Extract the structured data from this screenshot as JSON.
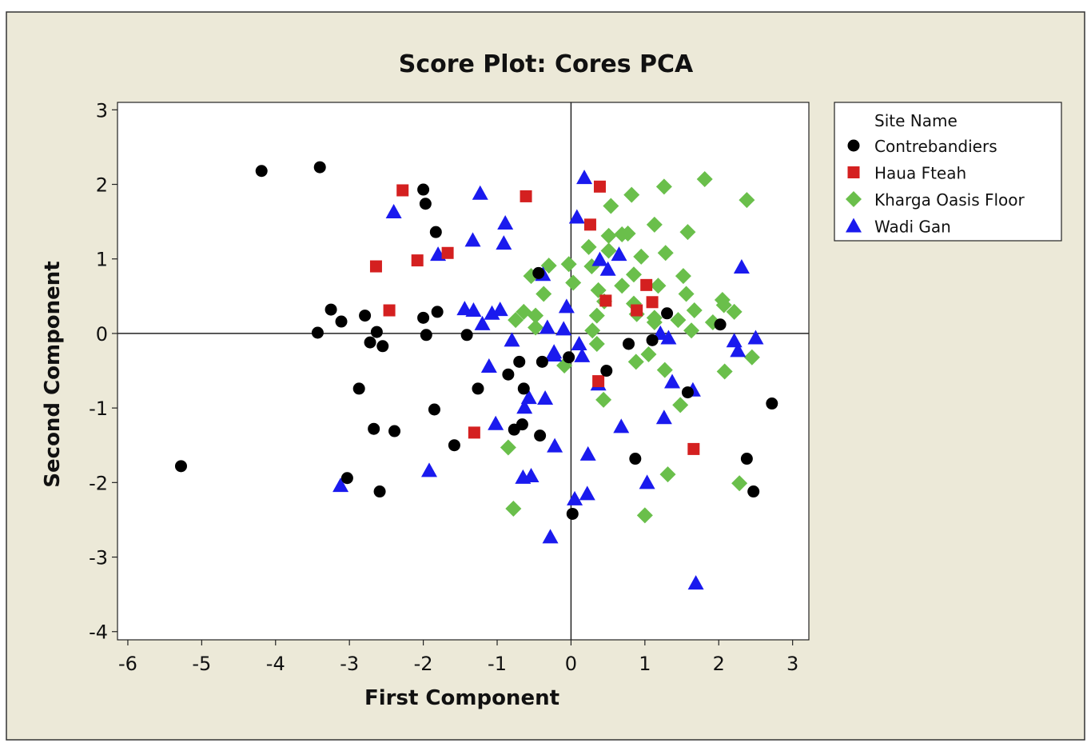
{
  "chart_data": {
    "type": "scatter",
    "title": "Score Plot: Cores PCA",
    "xlabel": "First Component",
    "ylabel": "Second Component",
    "xlim": [
      -6.14,
      3.22
    ],
    "ylim": [
      -4.11,
      3.1
    ],
    "xticks": [
      -6,
      -5,
      -4,
      -3,
      -2,
      -1,
      0,
      1,
      2,
      3
    ],
    "yticks": [
      3,
      2,
      1,
      0,
      -1,
      -2,
      -3,
      -4
    ],
    "reference_lines": {
      "x": 0,
      "y": 0
    },
    "grid": false,
    "legend": {
      "title": "Site Name",
      "position": "right"
    },
    "series": [
      {
        "name": "Contrebandiers",
        "marker": "circle",
        "color": "#000000",
        "points": [
          [
            -4.19,
            2.18
          ],
          [
            -3.4,
            2.23
          ],
          [
            -2.0,
            1.93
          ],
          [
            -1.97,
            1.74
          ],
          [
            -1.83,
            1.36
          ],
          [
            -3.25,
            0.32
          ],
          [
            -3.11,
            0.16
          ],
          [
            -2.79,
            0.24
          ],
          [
            -3.43,
            0.01
          ],
          [
            -2.63,
            0.02
          ],
          [
            -2.72,
            -0.12
          ],
          [
            -2.55,
            -0.17
          ],
          [
            -2.0,
            0.21
          ],
          [
            -1.81,
            0.29
          ],
          [
            -1.96,
            -0.02
          ],
          [
            -1.41,
            -0.02
          ],
          [
            -2.87,
            -0.74
          ],
          [
            -2.67,
            -1.28
          ],
          [
            -2.39,
            -1.31
          ],
          [
            -1.85,
            -1.02
          ],
          [
            -1.26,
            -0.74
          ],
          [
            -1.58,
            -1.5
          ],
          [
            -3.03,
            -1.94
          ],
          [
            -2.59,
            -2.12
          ],
          [
            -5.28,
            -1.78
          ],
          [
            -0.85,
            -0.55
          ],
          [
            -0.7,
            -0.38
          ],
          [
            -0.64,
            -0.74
          ],
          [
            -0.77,
            -1.29
          ],
          [
            -0.66,
            -1.22
          ],
          [
            -0.42,
            -1.37
          ],
          [
            -0.39,
            -0.38
          ],
          [
            -0.03,
            -0.32
          ],
          [
            0.48,
            -0.5
          ],
          [
            0.78,
            -0.14
          ],
          [
            1.1,
            -0.09
          ],
          [
            1.3,
            0.27
          ],
          [
            1.58,
            -0.79
          ],
          [
            2.02,
            0.12
          ],
          [
            2.72,
            -0.94
          ],
          [
            2.38,
            -1.68
          ],
          [
            2.47,
            -2.12
          ],
          [
            0.87,
            -1.68
          ],
          [
            0.02,
            -2.42
          ],
          [
            -0.44,
            0.81
          ]
        ]
      },
      {
        "name": "Haua Fteah",
        "marker": "square",
        "color": "#d42020",
        "points": [
          [
            -2.28,
            1.92
          ],
          [
            -0.61,
            1.84
          ],
          [
            0.39,
            1.97
          ],
          [
            0.26,
            1.46
          ],
          [
            -2.64,
            0.9
          ],
          [
            -2.08,
            0.98
          ],
          [
            -1.67,
            1.08
          ],
          [
            -2.46,
            0.31
          ],
          [
            1.02,
            0.65
          ],
          [
            1.1,
            0.42
          ],
          [
            0.47,
            0.44
          ],
          [
            0.89,
            0.31
          ],
          [
            0.37,
            -0.64
          ],
          [
            -1.31,
            -1.33
          ],
          [
            1.66,
            -1.55
          ]
        ]
      },
      {
        "name": "Kharga Oasis Floor",
        "marker": "diamond",
        "color": "#6abf4b",
        "points": [
          [
            1.81,
            2.07
          ],
          [
            2.38,
            1.79
          ],
          [
            1.26,
            1.97
          ],
          [
            0.82,
            1.86
          ],
          [
            0.54,
            1.71
          ],
          [
            1.13,
            1.46
          ],
          [
            1.58,
            1.36
          ],
          [
            0.51,
            1.31
          ],
          [
            0.69,
            1.33
          ],
          [
            0.77,
            1.34
          ],
          [
            0.24,
            1.16
          ],
          [
            0.51,
            1.11
          ],
          [
            0.95,
            1.03
          ],
          [
            1.28,
            1.08
          ],
          [
            -0.3,
            0.91
          ],
          [
            -0.03,
            0.93
          ],
          [
            0.28,
            0.9
          ],
          [
            -0.54,
            0.77
          ],
          [
            0.03,
            0.68
          ],
          [
            0.69,
            0.64
          ],
          [
            0.85,
            0.79
          ],
          [
            1.18,
            0.64
          ],
          [
            1.52,
            0.77
          ],
          [
            -0.37,
            0.53
          ],
          [
            0.37,
            0.58
          ],
          [
            1.56,
            0.53
          ],
          [
            0.45,
            0.43
          ],
          [
            0.85,
            0.4
          ],
          [
            2.05,
            0.45
          ],
          [
            2.07,
            0.38
          ],
          [
            0.35,
            0.24
          ],
          [
            0.89,
            0.26
          ],
          [
            1.13,
            0.21
          ],
          [
            1.67,
            0.31
          ],
          [
            2.21,
            0.29
          ],
          [
            -0.64,
            0.29
          ],
          [
            -0.75,
            0.18
          ],
          [
            -0.48,
            0.24
          ],
          [
            -0.48,
            0.08
          ],
          [
            1.92,
            0.15
          ],
          [
            1.63,
            0.04
          ],
          [
            1.45,
            0.18
          ],
          [
            0.29,
            0.04
          ],
          [
            0.35,
            -0.14
          ],
          [
            1.13,
            0.15
          ],
          [
            2.45,
            -0.32
          ],
          [
            1.05,
            -0.28
          ],
          [
            0.88,
            -0.38
          ],
          [
            1.27,
            -0.49
          ],
          [
            2.08,
            -0.51
          ],
          [
            -0.09,
            -0.43
          ],
          [
            0.44,
            -0.89
          ],
          [
            1.48,
            -0.96
          ],
          [
            -0.85,
            -1.53
          ],
          [
            -0.78,
            -2.35
          ],
          [
            1.0,
            -2.44
          ],
          [
            1.31,
            -1.89
          ],
          [
            2.28,
            -2.01
          ]
        ]
      },
      {
        "name": "Wadi Gan",
        "marker": "triangle",
        "color": "#1a1aee",
        "points": [
          [
            0.18,
            2.09
          ],
          [
            -1.23,
            1.88
          ],
          [
            -2.4,
            1.63
          ],
          [
            -0.89,
            1.48
          ],
          [
            0.08,
            1.56
          ],
          [
            -1.33,
            1.25
          ],
          [
            -0.91,
            1.21
          ],
          [
            -1.8,
            1.06
          ],
          [
            -0.38,
            0.79
          ],
          [
            0.65,
            1.06
          ],
          [
            0.39,
            0.99
          ],
          [
            0.5,
            0.86
          ],
          [
            2.31,
            0.89
          ],
          [
            -1.44,
            0.33
          ],
          [
            -1.32,
            0.31
          ],
          [
            -0.96,
            0.32
          ],
          [
            -1.07,
            0.27
          ],
          [
            -1.2,
            0.13
          ],
          [
            -0.06,
            0.36
          ],
          [
            -0.1,
            0.06
          ],
          [
            -0.32,
            0.08
          ],
          [
            -0.8,
            -0.09
          ],
          [
            -0.23,
            -0.25
          ],
          [
            0.11,
            -0.14
          ],
          [
            0.15,
            -0.3
          ],
          [
            -0.23,
            -0.29
          ],
          [
            -1.11,
            -0.44
          ],
          [
            1.21,
            0.0
          ],
          [
            1.32,
            -0.06
          ],
          [
            2.21,
            -0.1
          ],
          [
            2.26,
            -0.23
          ],
          [
            2.5,
            -0.06
          ],
          [
            1.37,
            -0.65
          ],
          [
            1.65,
            -0.76
          ],
          [
            0.37,
            -0.68
          ],
          [
            -0.35,
            -0.87
          ],
          [
            -0.57,
            -0.86
          ],
          [
            -0.63,
            -0.99
          ],
          [
            -1.02,
            -1.21
          ],
          [
            0.68,
            -1.25
          ],
          [
            1.26,
            -1.13
          ],
          [
            -0.22,
            -1.51
          ],
          [
            0.23,
            -1.62
          ],
          [
            -1.92,
            -1.84
          ],
          [
            -0.65,
            -1.93
          ],
          [
            -0.54,
            -1.91
          ],
          [
            0.05,
            -2.22
          ],
          [
            0.22,
            -2.15
          ],
          [
            1.03,
            -2.0
          ],
          [
            -3.12,
            -2.04
          ],
          [
            -0.28,
            -2.73
          ],
          [
            1.69,
            -3.35
          ]
        ]
      }
    ]
  }
}
